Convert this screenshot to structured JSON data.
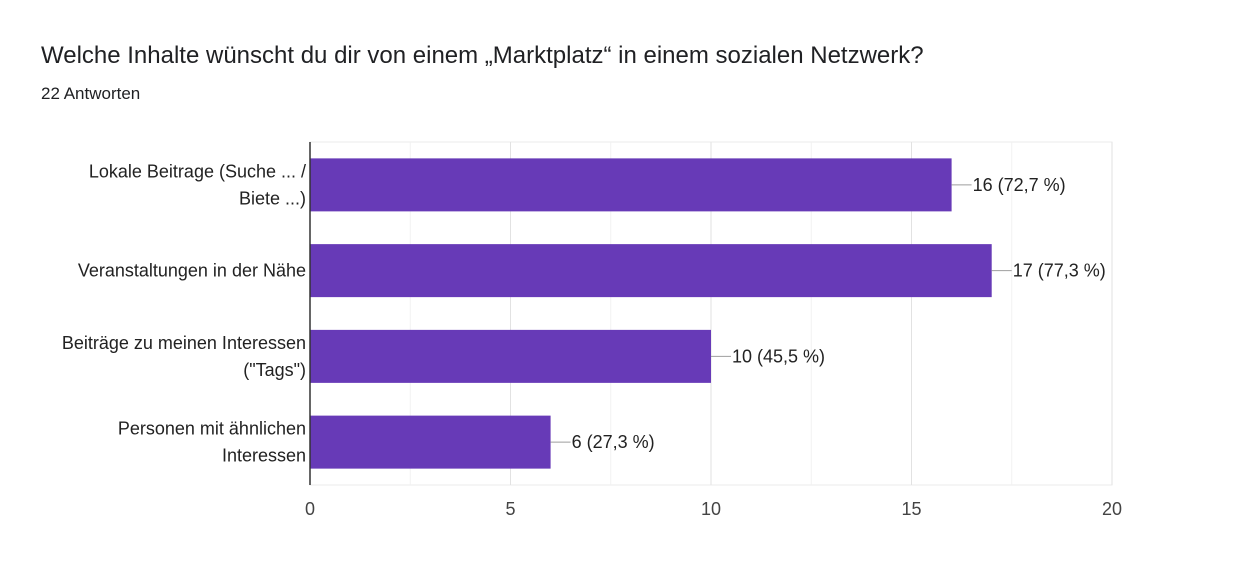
{
  "header": {
    "title": "Welche Inhalte wünscht du dir von einem „Marktplatz“ in einem sozialen Netzwerk?",
    "subtitle": "22 Antworten"
  },
  "colors": {
    "bar": "#673ab7",
    "axis": "#333333",
    "grid": "#ebebeb",
    "text": "#222222"
  },
  "chart_data": {
    "type": "bar",
    "orientation": "horizontal",
    "categories": [
      [
        "Lokale Beitrage (Suche ... /",
        "Biete ...)"
      ],
      [
        "Veranstaltungen in der Nähe"
      ],
      [
        "Beiträge zu meinen Interessen",
        "(\"Tags\")"
      ],
      [
        "Personen mit ähnlichen",
        "Interessen"
      ]
    ],
    "values": [
      16,
      17,
      10,
      6
    ],
    "data_labels": [
      "16 (72,7 %)",
      "17 (77,3 %)",
      "10 (45,5 %)",
      "6 (27,3 %)"
    ],
    "xlim": [
      0,
      20
    ],
    "xticks": [
      0,
      5,
      10,
      15,
      20
    ],
    "xtick_labels": [
      "0",
      "5",
      "10",
      "15",
      "20"
    ],
    "grid": true
  }
}
